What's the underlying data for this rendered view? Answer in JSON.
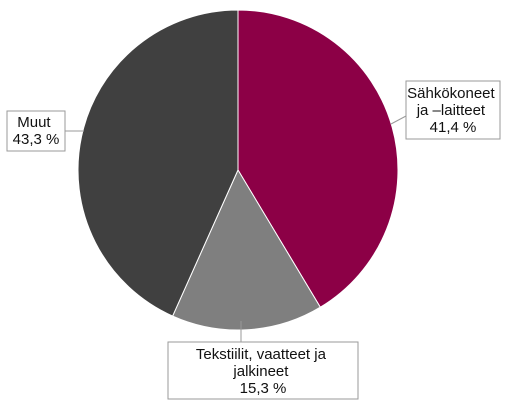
{
  "chart_data": {
    "type": "pie",
    "title": "",
    "unit": "%",
    "slices": [
      {
        "label_lines": [
          "Sähkökoneet",
          "ja –laitteet",
          "41,4 %"
        ],
        "value": 41.4,
        "color": "#8c0046"
      },
      {
        "label_lines": [
          "Tekstiilit, vaatteet ja",
          "jalkineet",
          "15,3 %"
        ],
        "value": 15.3,
        "color": "#7f7f7f"
      },
      {
        "label_lines": [
          "Muut",
          "43,3 %"
        ],
        "value": 43.3,
        "color": "#404040"
      }
    ],
    "start_angle_deg": 0,
    "direction": "clockwise",
    "legend": "none"
  }
}
